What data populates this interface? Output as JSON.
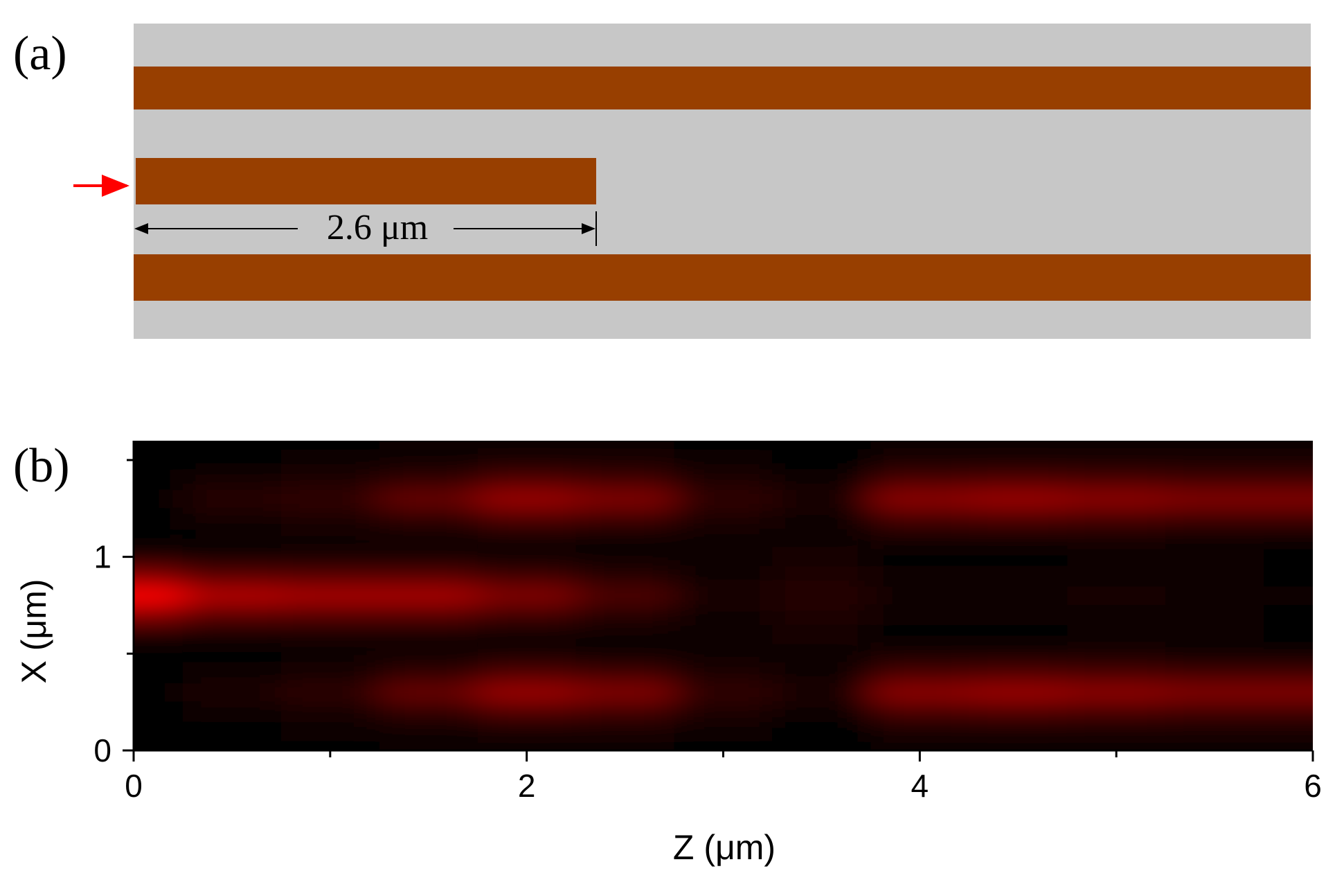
{
  "schematic": {
    "label": "(a)",
    "dimension": "2.6 μm"
  },
  "chart_data": {
    "type": "heatmap",
    "label": "(b)",
    "xlabel": "Z (μm)",
    "ylabel": "X (μm)",
    "x": [
      0,
      0.5,
      1,
      1.5,
      2,
      2.5,
      3,
      3.5,
      4,
      4.5,
      5,
      5.5,
      6
    ],
    "y": [
      0,
      0.1,
      0.2,
      0.3,
      0.4,
      0.5,
      0.6,
      0.7,
      0.8,
      0.9,
      1,
      1.1,
      1.2,
      1.3,
      1.4,
      1.5,
      1.6
    ],
    "values": [
      [
        0,
        0.01,
        0.02,
        0.04,
        0.06,
        0.05,
        0.02,
        0.01,
        0.06,
        0.06,
        0.06,
        0.05,
        0.05
      ],
      [
        0.01,
        0.02,
        0.03,
        0.06,
        0.09,
        0.08,
        0.03,
        0.02,
        0.08,
        0.09,
        0.08,
        0.08,
        0.08
      ],
      [
        0.01,
        0.06,
        0.09,
        0.2,
        0.3,
        0.25,
        0.1,
        0.05,
        0.28,
        0.3,
        0.28,
        0.25,
        0.25
      ],
      [
        0.02,
        0.12,
        0.18,
        0.4,
        0.6,
        0.5,
        0.2,
        0.1,
        0.55,
        0.6,
        0.55,
        0.5,
        0.5
      ],
      [
        0.01,
        0.06,
        0.09,
        0.2,
        0.3,
        0.25,
        0.1,
        0.05,
        0.28,
        0.3,
        0.28,
        0.25,
        0.25
      ],
      [
        0.01,
        0.02,
        0.03,
        0.05,
        0.07,
        0.06,
        0.05,
        0.06,
        0.07,
        0.07,
        0.07,
        0.06,
        0.06
      ],
      [
        0.1,
        0.07,
        0.07,
        0.07,
        0.05,
        0.04,
        0.05,
        0.08,
        0.02,
        0.02,
        0.04,
        0.03,
        0.02
      ],
      [
        0.5,
        0.35,
        0.33,
        0.33,
        0.25,
        0.15,
        0.06,
        0.1,
        0.03,
        0.03,
        0.05,
        0.03,
        0.02
      ],
      [
        1.0,
        0.7,
        0.65,
        0.65,
        0.5,
        0.3,
        0.1,
        0.15,
        0.05,
        0.05,
        0.08,
        0.05,
        0.03
      ],
      [
        0.5,
        0.35,
        0.33,
        0.33,
        0.25,
        0.15,
        0.06,
        0.1,
        0.03,
        0.03,
        0.05,
        0.03,
        0.02
      ],
      [
        0.1,
        0.07,
        0.07,
        0.07,
        0.05,
        0.04,
        0.05,
        0.08,
        0.02,
        0.02,
        0.04,
        0.03,
        0.02
      ],
      [
        0.01,
        0.02,
        0.03,
        0.05,
        0.07,
        0.06,
        0.05,
        0.06,
        0.07,
        0.07,
        0.07,
        0.06,
        0.06
      ],
      [
        0.01,
        0.08,
        0.1,
        0.2,
        0.3,
        0.25,
        0.1,
        0.05,
        0.28,
        0.3,
        0.28,
        0.25,
        0.25
      ],
      [
        0.02,
        0.15,
        0.2,
        0.4,
        0.6,
        0.5,
        0.2,
        0.1,
        0.55,
        0.6,
        0.55,
        0.5,
        0.5
      ],
      [
        0.01,
        0.08,
        0.1,
        0.2,
        0.3,
        0.25,
        0.1,
        0.05,
        0.28,
        0.3,
        0.28,
        0.25,
        0.25
      ],
      [
        0.01,
        0.02,
        0.03,
        0.06,
        0.09,
        0.08,
        0.03,
        0.02,
        0.08,
        0.09,
        0.08,
        0.08,
        0.08
      ],
      [
        0,
        0.01,
        0.02,
        0.04,
        0.06,
        0.05,
        0.02,
        0.01,
        0.06,
        0.06,
        0.06,
        0.05,
        0.05
      ]
    ],
    "colormap": [
      "#000000",
      "#ff0000"
    ],
    "xlim": [
      0,
      6
    ],
    "ylim": [
      0,
      1.6
    ],
    "xticks": [
      0,
      2,
      4,
      6
    ],
    "xminor": [
      1,
      3,
      5
    ],
    "yticks": [
      0,
      1
    ],
    "yminor": [
      0.5,
      1.5
    ]
  }
}
